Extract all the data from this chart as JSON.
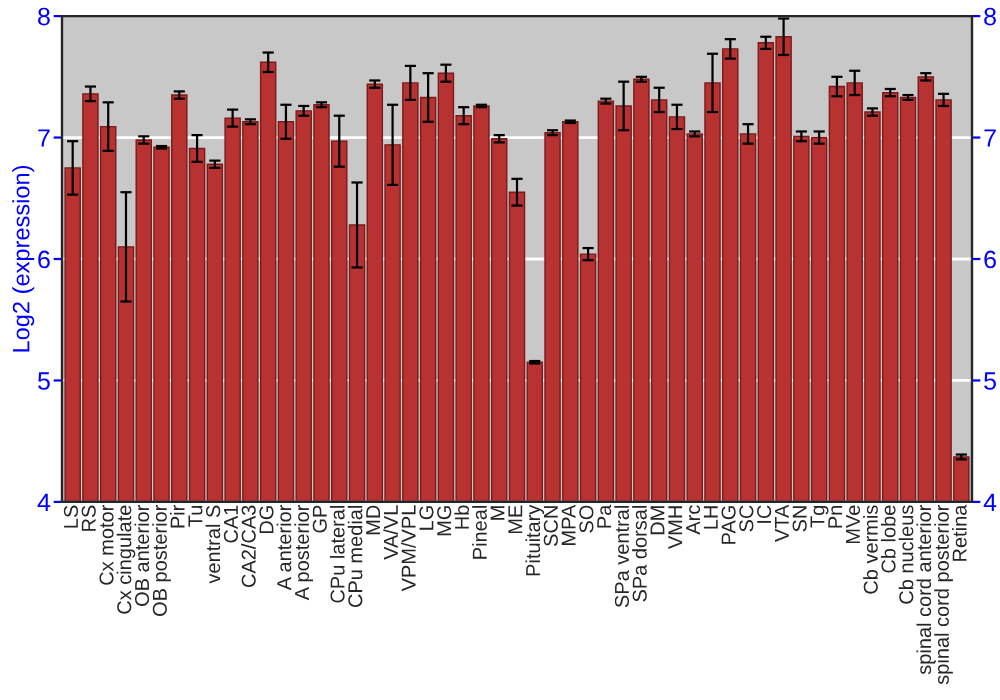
{
  "chart_data": {
    "type": "bar",
    "ylabel": "Log2 (expression)",
    "categories": [
      "LS",
      "RS",
      "Cx motor",
      "Cx cingulate",
      "OB anterior",
      "OB posterior",
      "Pir",
      "Tu",
      "ventral S",
      "CA1",
      "CA2/CA3",
      "DG",
      "A anterior",
      "A posterior",
      "GP",
      "CPu lateral",
      "CPu medial",
      "MD",
      "VA/VL",
      "VPM/VPL",
      "LG",
      "MG",
      "Hb",
      "Pineal",
      "M",
      "ME",
      "Pituitary",
      "SCN",
      "MPA",
      "SO",
      "Pa",
      "SPa ventral",
      "SPa dorsal",
      "DM",
      "VMH",
      "Arc",
      "LH",
      "PAG",
      "SC",
      "IC",
      "VTA",
      "SN",
      "Tg",
      "Pn",
      "MVe",
      "Cb vermis",
      "Cb lobe",
      "Cb nucleus",
      "spinal cord anterior",
      "spinal cord posterior",
      "Retina"
    ],
    "values": [
      6.75,
      7.36,
      7.09,
      6.1,
      6.98,
      6.92,
      7.35,
      6.91,
      6.78,
      7.16,
      7.13,
      7.62,
      7.13,
      7.22,
      7.27,
      6.97,
      6.28,
      7.44,
      6.94,
      7.45,
      7.33,
      7.53,
      7.18,
      7.26,
      6.99,
      6.55,
      5.15,
      7.04,
      7.13,
      6.04,
      7.3,
      7.26,
      7.48,
      7.31,
      7.17,
      7.03,
      7.45,
      7.73,
      7.03,
      7.78,
      7.83,
      7.01,
      7.0,
      7.42,
      7.45,
      7.21,
      7.37,
      7.33,
      7.5,
      7.31,
      4.37
    ],
    "errors": [
      0.22,
      0.06,
      0.2,
      0.45,
      0.03,
      0.01,
      0.03,
      0.11,
      0.03,
      0.07,
      0.02,
      0.08,
      0.14,
      0.04,
      0.02,
      0.21,
      0.35,
      0.03,
      0.33,
      0.14,
      0.2,
      0.07,
      0.07,
      0.01,
      0.03,
      0.11,
      0.01,
      0.02,
      0.01,
      0.05,
      0.02,
      0.2,
      0.02,
      0.1,
      0.1,
      0.02,
      0.24,
      0.08,
      0.08,
      0.05,
      0.15,
      0.04,
      0.05,
      0.08,
      0.1,
      0.03,
      0.03,
      0.02,
      0.03,
      0.05,
      0.02
    ],
    "color": "#b83232",
    "ylim": [
      4,
      8
    ],
    "yticks": [
      4,
      5,
      6,
      7,
      8
    ],
    "y2lim": [
      4,
      8
    ],
    "y2ticks": [
      4,
      5,
      6,
      7,
      8
    ],
    "grid": "y"
  }
}
